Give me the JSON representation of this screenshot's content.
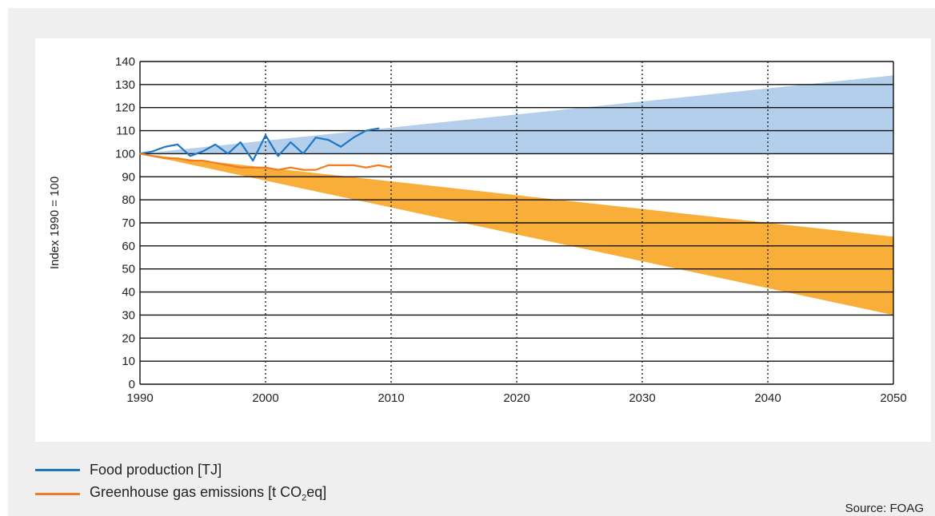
{
  "chart_data": {
    "type": "line",
    "ylabel": "Index 1990 = 100",
    "xlim": [
      1990,
      2050
    ],
    "ylim": [
      0,
      140
    ],
    "x_ticks": [
      1990,
      2000,
      2010,
      2020,
      2030,
      2040,
      2050
    ],
    "y_ticks": [
      0,
      10,
      20,
      30,
      40,
      50,
      60,
      70,
      80,
      90,
      100,
      110,
      120,
      130,
      140
    ],
    "grid": {
      "horizontal": "solid",
      "vertical": "dotted"
    },
    "legend_placement": "bottom-left",
    "series": [
      {
        "name": "Food production [TJ]",
        "color": "#1f77c4",
        "x": [
          1990,
          1991,
          1992,
          1993,
          1994,
          1995,
          1996,
          1997,
          1998,
          1999,
          2000,
          2001,
          2002,
          2003,
          2004,
          2005,
          2006,
          2007,
          2008,
          2009
        ],
        "y": [
          100,
          101,
          103,
          104,
          99,
          101,
          104,
          100,
          105,
          97,
          108,
          99,
          105,
          100,
          107,
          106,
          103,
          107,
          110,
          111
        ]
      },
      {
        "name_parts": [
          "Greenhouse gas emissions [t CO",
          "2",
          "eq]"
        ],
        "color": "#f07d23",
        "x": [
          1990,
          1991,
          1992,
          1993,
          1994,
          1995,
          1996,
          1997,
          1998,
          1999,
          2000,
          2001,
          2002,
          2003,
          2004,
          2005,
          2006,
          2007,
          2008,
          2009,
          2010
        ],
        "y": [
          100,
          99,
          98,
          98,
          97,
          97,
          96,
          95,
          94,
          94,
          94,
          93,
          94,
          93,
          93,
          95,
          95,
          95,
          94,
          95,
          94
        ]
      }
    ],
    "bands": [
      {
        "color": "#b3cfec",
        "x": [
          1990,
          2050
        ],
        "lower": [
          100,
          100
        ],
        "upper": [
          100,
          134
        ]
      },
      {
        "color": "#f9ae3a",
        "x": [
          1990,
          2050
        ],
        "lower": [
          100,
          30
        ],
        "upper": [
          100,
          64
        ]
      }
    ]
  },
  "source": "Source: FOAG"
}
